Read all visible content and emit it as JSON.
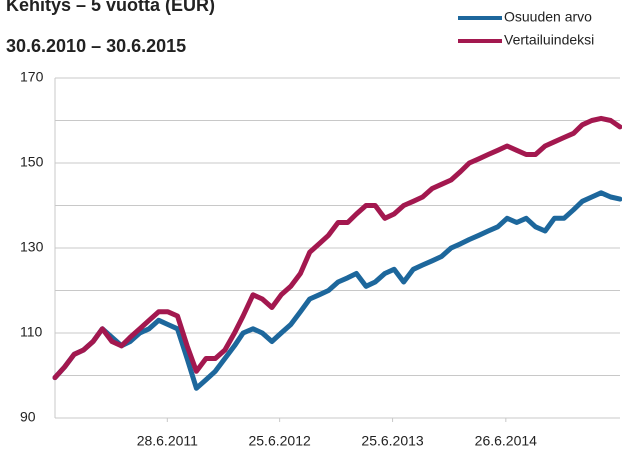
{
  "chart_data": {
    "type": "line",
    "title": "Kehitys – 5 vuotta (EUR)",
    "subtitle": "30.6.2010 – 30.6.2015",
    "x": [
      "2010-06-30",
      "2010-07-31",
      "2010-08-31",
      "2010-09-30",
      "2010-10-31",
      "2010-11-30",
      "2010-12-31",
      "2011-01-31",
      "2011-02-28",
      "2011-03-31",
      "2011-04-30",
      "2011-05-31",
      "2011-06-30",
      "2011-07-31",
      "2011-08-31",
      "2011-09-30",
      "2011-10-31",
      "2011-11-30",
      "2011-12-31",
      "2012-01-31",
      "2012-02-28",
      "2012-03-31",
      "2012-04-30",
      "2012-05-31",
      "2012-06-30",
      "2012-07-31",
      "2012-08-31",
      "2012-09-30",
      "2012-10-31",
      "2012-11-30",
      "2012-12-31",
      "2013-01-31",
      "2013-02-28",
      "2013-03-31",
      "2013-04-30",
      "2013-05-31",
      "2013-06-30",
      "2013-07-31",
      "2013-08-31",
      "2013-09-30",
      "2013-10-31",
      "2013-11-30",
      "2013-12-31",
      "2014-01-31",
      "2014-02-28",
      "2014-03-31",
      "2014-04-30",
      "2014-05-31",
      "2014-06-30",
      "2014-07-31",
      "2014-08-31",
      "2014-09-30",
      "2014-10-31",
      "2014-11-30",
      "2014-12-31",
      "2015-01-31",
      "2015-02-28",
      "2015-03-31",
      "2015-04-30",
      "2015-05-31",
      "2015-06-30"
    ],
    "series": [
      {
        "name": "Osuuden arvo",
        "color": "#1d679c",
        "values": [
          99.5,
          102,
          105,
          106,
          108,
          111,
          109,
          107,
          108,
          110,
          111,
          113,
          112,
          111,
          104,
          97,
          99,
          101,
          104,
          107,
          110,
          111,
          110,
          108,
          110,
          112,
          115,
          118,
          119,
          120,
          122,
          123,
          124,
          121,
          122,
          124,
          125,
          122,
          125,
          126,
          127,
          128,
          130,
          131,
          132,
          133,
          134,
          135,
          137,
          136,
          137,
          135,
          134,
          137,
          137,
          139,
          141,
          142,
          143,
          142,
          141.5
        ]
      },
      {
        "name": "Vertailuindeksi",
        "color": "#a3184f",
        "values": [
          99.5,
          102,
          105,
          106,
          108,
          111,
          108,
          107,
          109,
          111,
          113,
          115,
          115,
          114,
          107,
          101,
          104,
          104,
          106,
          110,
          114,
          119,
          118,
          116,
          119,
          121,
          124,
          129,
          131,
          133,
          136,
          136,
          138,
          140,
          140,
          137,
          138,
          140,
          141,
          142,
          144,
          145,
          146,
          148,
          150,
          151,
          152,
          153,
          154,
          153,
          152,
          152,
          154,
          155,
          156,
          157,
          159,
          160,
          160.5,
          160,
          158.5
        ]
      }
    ],
    "xlim": [
      "2010-06-30",
      "2015-06-30"
    ],
    "xticks": [
      {
        "value": "2011-06-28",
        "label": "28.6.2011"
      },
      {
        "value": "2012-06-25",
        "label": "25.6.2012"
      },
      {
        "value": "2013-06-25",
        "label": "25.6.2013"
      },
      {
        "value": "2014-06-26",
        "label": "26.6.2014"
      }
    ],
    "ylim": [
      90,
      170
    ],
    "yticks": [
      90,
      110,
      130,
      150,
      170
    ],
    "minor_yticks": [
      100,
      120,
      140,
      160
    ],
    "grid": true,
    "legend": "top-right"
  }
}
